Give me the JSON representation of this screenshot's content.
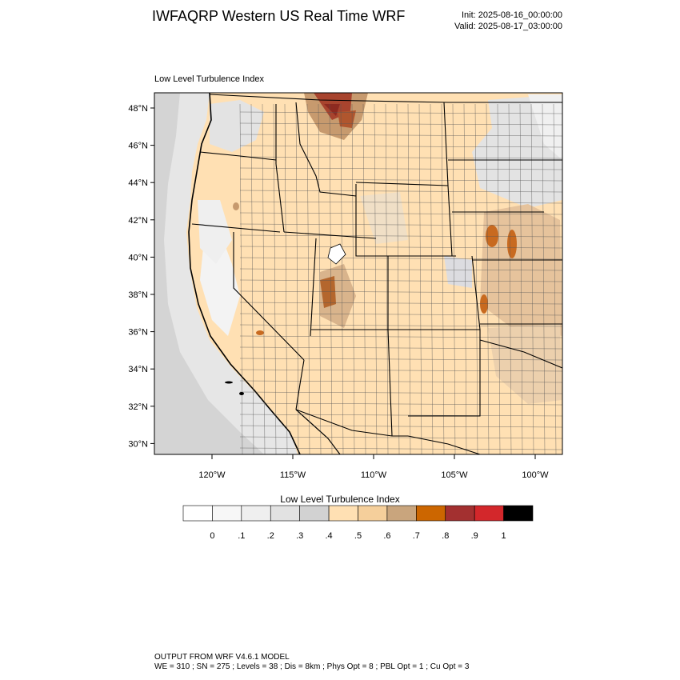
{
  "header": {
    "title": "IWFAQRP Western US Real Time WRF",
    "init": "Init: 2025-08-16_00:00:00",
    "valid": "Valid: 2025-08-17_03:00:00"
  },
  "map": {
    "field_label": "Low Level Turbulence Index",
    "lat_labels": [
      "48°N",
      "46°N",
      "44°N",
      "42°N",
      "40°N",
      "38°N",
      "36°N",
      "34°N",
      "32°N",
      "30°N"
    ],
    "lon_labels": [
      "120°W",
      "115°W",
      "110°W",
      "105°W",
      "100°W"
    ],
    "base_fill": "#ffe0b3"
  },
  "colorbar": {
    "title": "Low Level Turbulence Index",
    "labels": [
      "0",
      ".1",
      ".2",
      ".3",
      ".4",
      ".5",
      ".6",
      ".7",
      ".8",
      ".9",
      "1"
    ],
    "colors": [
      "#ffffff",
      "#f7f7f7",
      "#efefef",
      "#e2e2e2",
      "#d2d2d2",
      "#ffe0b3",
      "#f5cf9b",
      "#c9a57d",
      "#cc6600",
      "#a33030",
      "#d3272b",
      "#000000"
    ]
  },
  "footer": {
    "model": "OUTPUT FROM WRF V4.6.1 MODEL",
    "params": "WE = 310 ; SN = 275 ; Levels = 38 ; Dis = 8km ; Phys Opt = 8 ; PBL Opt = 1 ; Cu Opt = 3"
  }
}
